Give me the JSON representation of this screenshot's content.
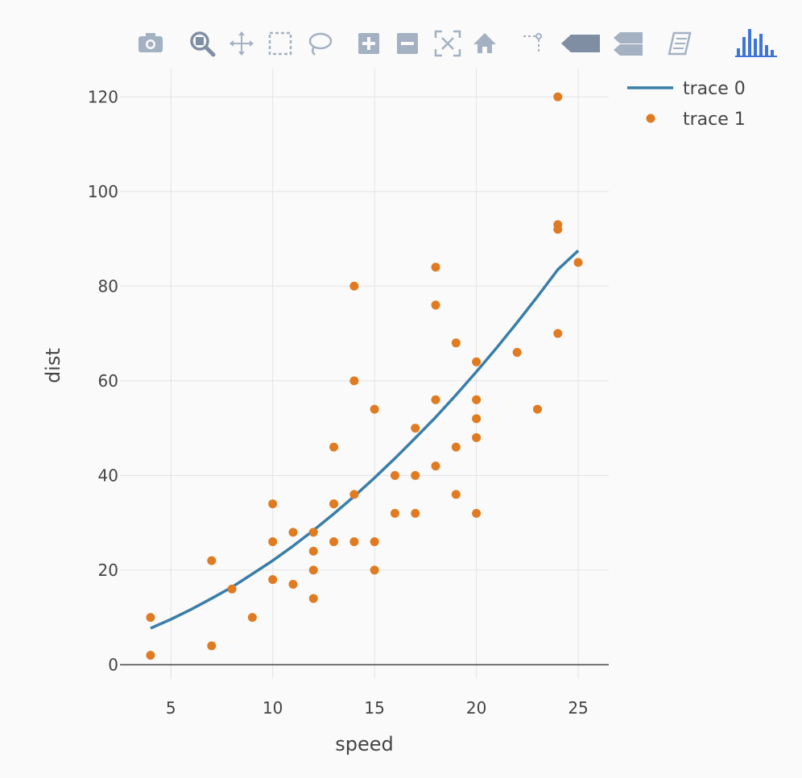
{
  "toolbar": {
    "buttons": [
      {
        "name": "download-plot-button",
        "icon": "camera-icon"
      },
      {
        "name": "zoom-button",
        "icon": "zoom-icon"
      },
      {
        "name": "pan-button",
        "icon": "pan-icon"
      },
      {
        "name": "box-select-button",
        "icon": "box-select-icon"
      },
      {
        "name": "lasso-select-button",
        "icon": "lasso-icon"
      },
      {
        "name": "zoom-in-button",
        "icon": "zoom-in-icon"
      },
      {
        "name": "zoom-out-button",
        "icon": "zoom-out-icon"
      },
      {
        "name": "autoscale-button",
        "icon": "autoscale-icon"
      },
      {
        "name": "reset-axes-button",
        "icon": "home-icon"
      },
      {
        "name": "toggle-spike-lines-button",
        "icon": "spike-lines-icon"
      },
      {
        "name": "hover-closest-button",
        "icon": "hover-closest-icon"
      },
      {
        "name": "hover-compare-button",
        "icon": "hover-compare-icon"
      },
      {
        "name": "edit-chart-studio-button",
        "icon": "chart-studio-icon"
      },
      {
        "name": "plotly-logo-link",
        "icon": "plotly-logo-icon"
      }
    ],
    "icon_color": "#a3b1c2",
    "active_color": "#7f8ea3"
  },
  "chart_data": {
    "type": "scatter",
    "xlabel": "speed",
    "ylabel": "dist",
    "xlim": [
      2.5,
      26.5
    ],
    "ylim": [
      -3,
      126
    ],
    "xticks": [
      5,
      10,
      15,
      20,
      25
    ],
    "yticks": [
      0,
      20,
      40,
      60,
      80,
      100,
      120
    ],
    "grid": true,
    "legend_position": "top-right",
    "series": [
      {
        "name": "trace 0",
        "mode": "lines",
        "color": "#3a7ea8",
        "x": [
          4,
          5,
          6,
          7,
          8,
          9,
          10,
          11,
          12,
          13,
          14,
          15,
          16,
          17,
          18,
          19,
          20,
          21,
          22,
          23,
          24,
          25
        ],
        "y": [
          7.7,
          9.6,
          11.7,
          14.0,
          16.4,
          19.2,
          22.0,
          25.1,
          28.4,
          31.9,
          35.6,
          39.5,
          43.6,
          47.9,
          52.3,
          57.0,
          61.9,
          67.0,
          72.3,
          77.8,
          83.5,
          87.5
        ]
      },
      {
        "name": "trace 1",
        "mode": "markers",
        "color": "#e07b21",
        "x": [
          4,
          4,
          7,
          7,
          8,
          9,
          10,
          10,
          10,
          11,
          11,
          12,
          12,
          12,
          12,
          13,
          13,
          13,
          13,
          14,
          14,
          14,
          14,
          15,
          15,
          15,
          16,
          16,
          17,
          17,
          17,
          18,
          18,
          18,
          18,
          19,
          19,
          19,
          20,
          20,
          20,
          20,
          20,
          22,
          23,
          24,
          24,
          24,
          24,
          25
        ],
        "y": [
          2,
          10,
          4,
          22,
          16,
          10,
          18,
          26,
          34,
          17,
          28,
          14,
          20,
          24,
          28,
          26,
          34,
          34,
          46,
          26,
          36,
          60,
          80,
          20,
          26,
          54,
          32,
          40,
          32,
          40,
          50,
          42,
          56,
          76,
          84,
          36,
          46,
          68,
          32,
          48,
          52,
          56,
          64,
          66,
          54,
          70,
          92,
          93,
          120,
          85
        ]
      }
    ]
  }
}
